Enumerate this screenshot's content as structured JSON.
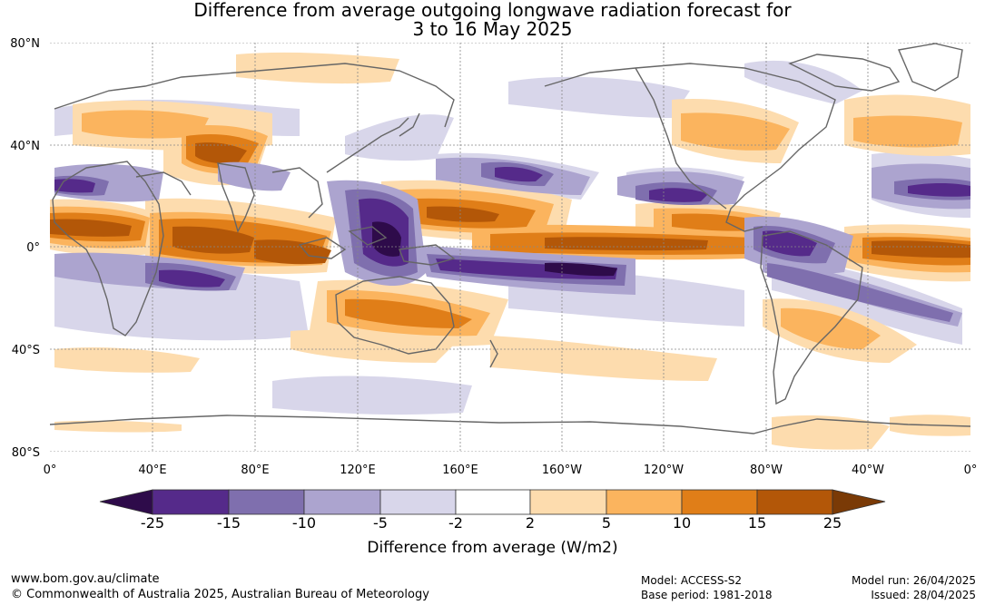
{
  "title_line1": "Difference from average outgoing longwave radiation forecast for",
  "title_line2": "3 to 16 May 2025",
  "lat_labels": [
    "80°N",
    "40°N",
    "0°",
    "40°S",
    "80°S"
  ],
  "lon_labels": [
    "0°",
    "40°E",
    "80°E",
    "120°E",
    "160°E",
    "160°W",
    "120°W",
    "80°W",
    "40°W",
    "0°"
  ],
  "colorbar": {
    "title": "Difference from average (W/m2)",
    "tick_labels": [
      "-25",
      "-15",
      "-10",
      "-5",
      "-2",
      "2",
      "5",
      "10",
      "15",
      "25"
    ],
    "colors": {
      "lt_minus25": "#2e0b4a",
      "m25_m15": "#552a8a",
      "m15_m10": "#7f6fae",
      "m10_m5": "#aca4cf",
      "m5_m2": "#d8d6ea",
      "m2_p2": "#ffffff",
      "p2_p5": "#fddcae",
      "p5_p10": "#fbb45e",
      "p10_p15": "#e07e18",
      "p15_p25": "#b35708",
      "gt_p25": "#7a3a06"
    }
  },
  "footer": {
    "website": "www.bom.gov.au/climate",
    "copyright": "© Commonwealth of Australia 2025, Australian Bureau of Meteorology",
    "model": "Model: ACCESS-S2",
    "base_period": "Base period: 1981-2018",
    "model_run": "Model run: 26/04/2025",
    "issued": "Issued: 28/04/2025"
  }
}
